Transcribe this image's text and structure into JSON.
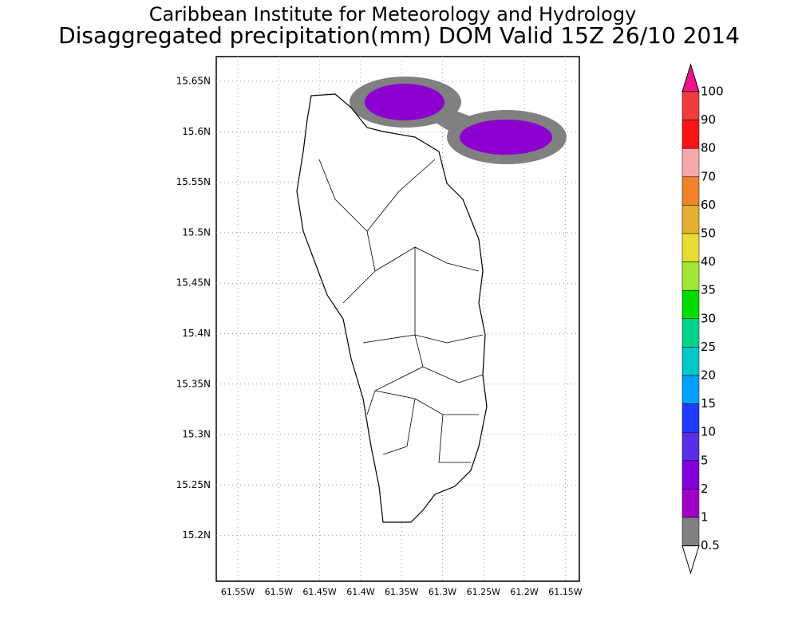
{
  "header": {
    "line1": "Caribbean Institute for Meteorology and Hydrology",
    "line2": "Disaggregated precipitation(mm) DOM Valid 15Z 26/10 2014"
  },
  "map": {
    "lat_labels": [
      "15.65N",
      "15.6N",
      "15.55N",
      "15.5N",
      "15.45N",
      "15.4N",
      "15.35N",
      "15.3N",
      "15.25N",
      "15.2N"
    ],
    "lon_labels": [
      "61.55W",
      "61.5W",
      "61.45W",
      "61.4W",
      "61.35W",
      "61.3W",
      "61.25W",
      "61.2W",
      "61.15W"
    ]
  },
  "colorbar": {
    "labels": [
      "100",
      "90",
      "80",
      "70",
      "60",
      "50",
      "40",
      "35",
      "30",
      "25",
      "20",
      "15",
      "10",
      "5",
      "2",
      "1",
      "0.5"
    ],
    "colors": [
      "#f03c3c",
      "#fa1414",
      "#f8a8a8",
      "#f08228",
      "#e6af2d",
      "#e6dc32",
      "#a0e632",
      "#00dc00",
      "#00d28c",
      "#00c8c8",
      "#00a0ff",
      "#1e3cff",
      "#5a2de6",
      "#8200dc",
      "#a000c8",
      "#808080"
    ],
    "over_color": "#f0148c",
    "under_color": "#ffffff"
  }
}
